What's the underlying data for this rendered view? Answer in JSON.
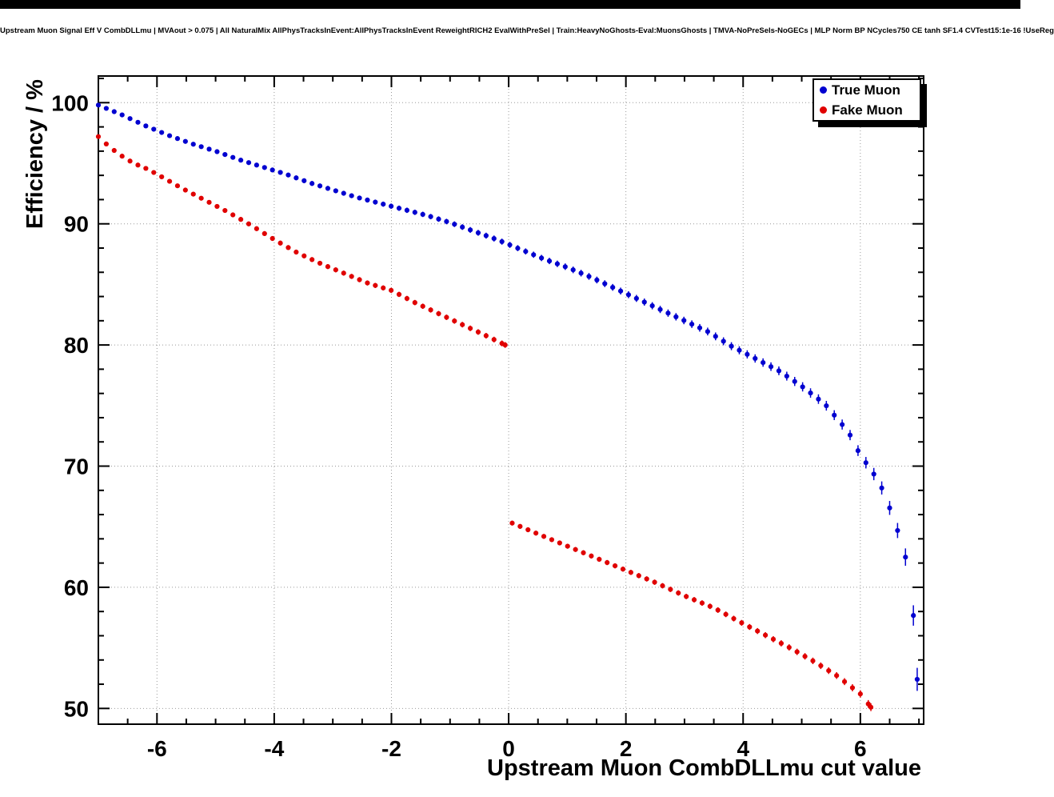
{
  "window": {
    "top_bar_color": "#000000"
  },
  "chart_data": {
    "type": "scatter",
    "title": "Upstream Muon Signal Eff V CombDLLmu | MVAout > 0.075 | All NaturalMix AllPhysTracksInEvent:AllPhysTracksInEvent ReweightRICH2 EvalWithPreSel | Train:HeavyNoGhosts-Eval:MuonsGhosts | TMVA-NoPreSels-NoGECs | MLP Norm BP NCycles750 CE tanh SF1.4 CVTest15:1e-16 !UseReg",
    "xlabel": "Upstream Muon CombDLLmu cut value",
    "ylabel": "Efficiency / %",
    "xlim": [
      -7.0,
      7.08
    ],
    "ylim": [
      48.7,
      102.2
    ],
    "x_ticks": [
      -6,
      -4,
      -2,
      0,
      2,
      4,
      6
    ],
    "y_ticks": [
      50,
      60,
      70,
      80,
      90,
      100
    ],
    "x_minor_step": 0.5,
    "y_minor_step": 2,
    "grid": "dotted",
    "grid_color": "#999999",
    "legend_position": "top-right",
    "marker_step": 0.135,
    "series": [
      {
        "name": "True Muon",
        "color": "#0000d0",
        "marker": "circle",
        "segments": [
          [
            [
              -7.0,
              99.8,
              0.12
            ],
            [
              -6.6,
              99.0,
              0.12
            ],
            [
              -6.2,
              98.1,
              0.14
            ],
            [
              -5.8,
              97.3,
              0.15
            ],
            [
              -5.4,
              96.6,
              0.16
            ],
            [
              -5.0,
              96.0,
              0.17
            ],
            [
              -4.6,
              95.3,
              0.18
            ],
            [
              -4.2,
              94.7,
              0.18
            ],
            [
              -3.8,
              94.1,
              0.19
            ],
            [
              -3.4,
              93.4,
              0.2
            ],
            [
              -3.0,
              92.8,
              0.2
            ],
            [
              -2.6,
              92.2,
              0.2
            ],
            [
              -2.2,
              91.7,
              0.21
            ],
            [
              -1.8,
              91.2,
              0.22
            ],
            [
              -1.4,
              90.7,
              0.22
            ],
            [
              -1.0,
              90.1,
              0.23
            ],
            [
              -0.6,
              89.4,
              0.24
            ],
            [
              -0.2,
              88.7,
              0.25
            ],
            [
              0.2,
              87.9,
              0.25
            ],
            [
              0.6,
              87.1,
              0.26
            ],
            [
              1.0,
              86.4,
              0.27
            ],
            [
              1.4,
              85.6,
              0.28
            ],
            [
              1.8,
              84.7,
              0.28
            ],
            [
              2.2,
              83.8,
              0.29
            ],
            [
              2.6,
              82.9,
              0.3
            ],
            [
              3.0,
              82.0,
              0.31
            ],
            [
              3.4,
              81.1,
              0.32
            ],
            [
              3.8,
              79.9,
              0.33
            ],
            [
              4.2,
              78.9,
              0.34
            ],
            [
              4.6,
              77.9,
              0.36
            ],
            [
              5.0,
              76.6,
              0.38
            ],
            [
              5.4,
              75.1,
              0.4
            ],
            [
              5.8,
              72.8,
              0.42
            ],
            [
              6.0,
              70.9,
              0.45
            ],
            [
              6.2,
              69.6,
              0.5
            ],
            [
              6.4,
              67.9,
              0.55
            ],
            [
              6.6,
              65.2,
              0.6
            ],
            [
              6.75,
              63.0,
              0.7
            ],
            [
              6.88,
              59.7,
              0.8
            ],
            [
              6.97,
              52.4,
              0.95
            ]
          ]
        ]
      },
      {
        "name": "Fake Muon",
        "color": "#e00000",
        "marker": "circle",
        "segments": [
          [
            [
              -7.0,
              97.2,
              0.15
            ],
            [
              -6.8,
              96.3,
              0.16
            ],
            [
              -6.6,
              95.6,
              0.16
            ],
            [
              -6.4,
              95.0,
              0.17
            ],
            [
              -6.2,
              94.6,
              0.17
            ],
            [
              -6.0,
              94.1,
              0.17
            ],
            [
              -5.6,
              93.0,
              0.18
            ],
            [
              -5.2,
              92.0,
              0.18
            ],
            [
              -4.8,
              91.0,
              0.19
            ],
            [
              -4.4,
              89.9,
              0.19
            ],
            [
              -4.0,
              88.7,
              0.2
            ],
            [
              -3.6,
              87.6,
              0.2
            ],
            [
              -3.2,
              86.7,
              0.2
            ],
            [
              -2.8,
              85.9,
              0.21
            ],
            [
              -2.4,
              85.1,
              0.21
            ],
            [
              -2.0,
              84.5,
              0.21
            ],
            [
              -1.6,
              83.5,
              0.22
            ],
            [
              -1.2,
              82.6,
              0.22
            ],
            [
              -0.8,
              81.7,
              0.23
            ],
            [
              -0.4,
              80.8,
              0.23
            ],
            [
              -0.06,
              80.0,
              0.24
            ]
          ],
          [
            [
              0.06,
              65.3,
              0.2
            ],
            [
              0.5,
              64.4,
              0.2
            ],
            [
              1.0,
              63.4,
              0.2
            ],
            [
              1.5,
              62.4,
              0.21
            ],
            [
              2.0,
              61.4,
              0.21
            ],
            [
              2.5,
              60.4,
              0.22
            ],
            [
              3.0,
              59.3,
              0.22
            ],
            [
              3.5,
              58.3,
              0.23
            ],
            [
              4.0,
              57.0,
              0.24
            ],
            [
              4.4,
              56.0,
              0.25
            ],
            [
              4.8,
              55.0,
              0.26
            ],
            [
              5.2,
              53.9,
              0.27
            ],
            [
              5.6,
              52.7,
              0.28
            ],
            [
              6.0,
              51.2,
              0.3
            ],
            [
              6.18,
              50.1,
              0.32
            ]
          ]
        ]
      }
    ]
  }
}
